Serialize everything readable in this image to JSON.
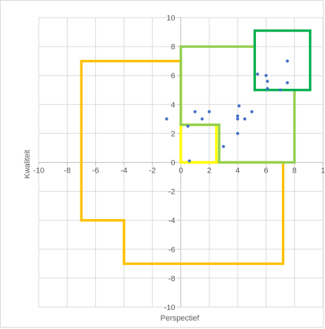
{
  "chart_data": {
    "type": "scatter",
    "title": "",
    "xlabel": "Perspectief",
    "ylabel": "Kwaliteit",
    "xlim": [
      -10,
      10
    ],
    "ylim": [
      -10,
      10
    ],
    "x_ticks": [
      "-10",
      "-8",
      "-6",
      "-4",
      "-2",
      "0",
      "2",
      "4",
      "6",
      "8",
      "1"
    ],
    "y_ticks": [
      "10",
      "8",
      "6",
      "4",
      "2",
      "0",
      "-2",
      "-4",
      "-6",
      "-8",
      "-10"
    ],
    "grid": true,
    "legend": "none",
    "series": [
      {
        "color": "#4472c4",
        "points": [
          {
            "x": -1,
            "y": 3
          },
          {
            "x": 0.5,
            "y": 2.5
          },
          {
            "x": 1,
            "y": 3.5
          },
          {
            "x": 1.5,
            "y": 3
          },
          {
            "x": 2,
            "y": 3.5
          },
          {
            "x": 3,
            "y": 1.1
          },
          {
            "x": 0.6,
            "y": 0.1
          },
          {
            "x": 4,
            "y": 3
          },
          {
            "x": 4,
            "y": 3.2
          },
          {
            "x": 4.1,
            "y": 3.9
          },
          {
            "x": 4,
            "y": 2
          },
          {
            "x": 4.5,
            "y": 3
          },
          {
            "x": 5,
            "y": 3.5
          },
          {
            "x": 5.4,
            "y": 6.1
          },
          {
            "x": 6,
            "y": 6
          },
          {
            "x": 6.1,
            "y": 5.6
          },
          {
            "x": 6.1,
            "y": 5.1
          },
          {
            "x": 7.5,
            "y": 7
          },
          {
            "x": 7.5,
            "y": 5.5
          },
          {
            "x": 7,
            "y": 5
          }
        ]
      }
    ],
    "regions": [
      {
        "color": "#ffc000",
        "points": [
          [
            -7,
            7
          ],
          [
            0,
            7
          ],
          [
            0,
            0
          ],
          [
            7.2,
            0
          ],
          [
            7.2,
            -7
          ],
          [
            -4,
            -7
          ],
          [
            -4,
            -4
          ],
          [
            -7,
            -4
          ]
        ]
      },
      {
        "color": "#ffff00",
        "points": [
          [
            0,
            2.6
          ],
          [
            2.5,
            2.6
          ],
          [
            2.5,
            0
          ],
          [
            0,
            0
          ]
        ]
      },
      {
        "color": "#92d050",
        "points": [
          [
            0,
            8
          ],
          [
            5.2,
            8
          ],
          [
            5.2,
            5
          ],
          [
            8,
            5
          ],
          [
            8,
            0
          ],
          [
            2.7,
            0
          ],
          [
            2.7,
            2.6
          ],
          [
            0,
            2.6
          ]
        ]
      },
      {
        "color": "#00b050",
        "points": [
          [
            5.2,
            9.1
          ],
          [
            9.1,
            9.1
          ],
          [
            9.1,
            5
          ],
          [
            5.2,
            5
          ]
        ]
      }
    ],
    "colors": {
      "grid": "#d9d9d9",
      "axis": "#bfbfbf",
      "text": "#595959"
    }
  }
}
